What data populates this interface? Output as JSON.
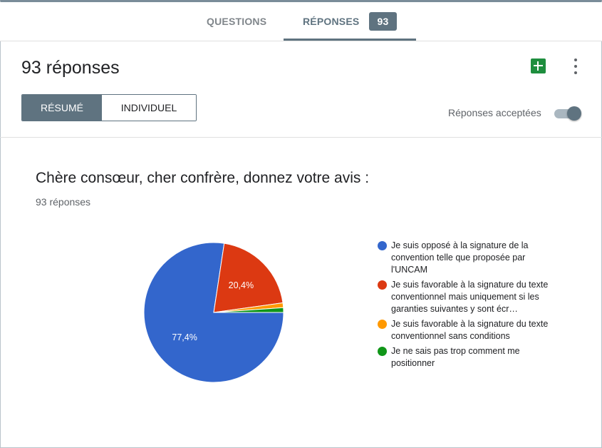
{
  "tabs": {
    "questions_label": "QUESTIONS",
    "responses_label": "RÉPONSES",
    "responses_count": "93"
  },
  "header": {
    "title": "93 réponses",
    "view_summary_label": "RÉSUMÉ",
    "view_individual_label": "INDIVIDUEL",
    "accepting_label": "Réponses acceptées",
    "accepting_on": true,
    "sheets_icon": "sheets-icon",
    "more_icon": "more-vert-icon"
  },
  "question": {
    "title": "Chère consœur, cher confrère, donnez votre avis :",
    "response_count_label": "93 réponses"
  },
  "colors": {
    "accent": "#5f7380",
    "sheets_green": "#1e8e3e"
  },
  "chart_data": {
    "type": "pie",
    "categories": [
      "Je suis opposé à la signature de la convention telle que proposée par l'UNCAM",
      "Je suis favorable à la signature du texte conventionnel mais uniquement si les garanties suivantes y sont écr…",
      "Je suis favorable à la signature du texte conventionnel sans conditions",
      "Je ne sais pas trop comment me positionner"
    ],
    "values": [
      77.4,
      20.4,
      1.1,
      1.1
    ],
    "value_labels": [
      "77,4%",
      "20,4%",
      "",
      ""
    ],
    "colors": [
      "#3366cc",
      "#dc3912",
      "#ff9900",
      "#109618"
    ],
    "legend_position": "right"
  }
}
